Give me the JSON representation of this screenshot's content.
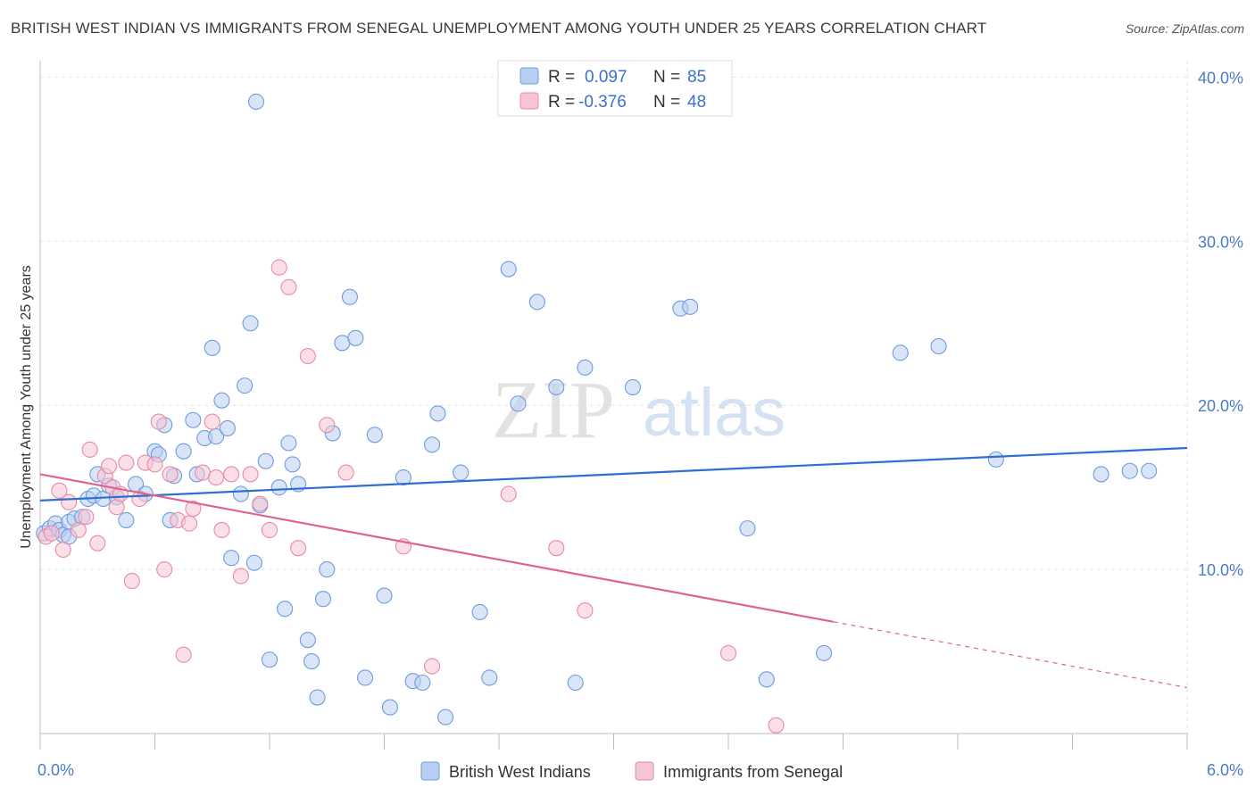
{
  "title": "BRITISH WEST INDIAN VS IMMIGRANTS FROM SENEGAL UNEMPLOYMENT AMONG YOUTH UNDER 25 YEARS CORRELATION CHART",
  "source": "Source: ZipAtlas.com",
  "watermark": {
    "zip": "ZIP",
    "atlas": "atlas"
  },
  "chart_data": {
    "type": "scatter",
    "ylabel": "Unemployment Among Youth under 25 years",
    "xlim": [
      0,
      6
    ],
    "ylim": [
      0,
      41
    ],
    "x_ticks": [
      "0.0%",
      "6.0%"
    ],
    "y_ticks": [
      {
        "value": 10,
        "label": "10.0%"
      },
      {
        "value": 20,
        "label": "20.0%"
      },
      {
        "value": 30,
        "label": "30.0%"
      },
      {
        "value": 40,
        "label": "40.0%"
      }
    ],
    "legend": [
      {
        "r_label": "R =",
        "r_value": "0.097",
        "n_label": "N =",
        "n_value": "85"
      },
      {
        "r_label": "R =",
        "r_value": "-0.376",
        "n_label": "N =",
        "n_value": "48"
      }
    ],
    "series": [
      {
        "name": "British West Indians",
        "color": "#6e9be0",
        "fill": "#b9cff1",
        "trend": {
          "x0": 0,
          "y0": 14.2,
          "x1": 6,
          "y1": 17.4,
          "dash_from": null
        },
        "points": [
          [
            0.02,
            12.2
          ],
          [
            0.05,
            12.5
          ],
          [
            0.08,
            12.8
          ],
          [
            0.1,
            12.4
          ],
          [
            0.12,
            12.1
          ],
          [
            0.15,
            12.9
          ],
          [
            0.18,
            13.1
          ],
          [
            0.22,
            13.2
          ],
          [
            0.25,
            14.3
          ],
          [
            0.28,
            14.5
          ],
          [
            0.3,
            15.8
          ],
          [
            0.33,
            14.3
          ],
          [
            0.36,
            15.1
          ],
          [
            0.4,
            14.4
          ],
          [
            0.45,
            13.0
          ],
          [
            0.5,
            15.2
          ],
          [
            0.55,
            14.6
          ],
          [
            0.6,
            17.2
          ],
          [
            0.62,
            17.0
          ],
          [
            0.65,
            18.8
          ],
          [
            0.68,
            13.0
          ],
          [
            0.7,
            15.7
          ],
          [
            0.75,
            17.2
          ],
          [
            0.8,
            19.1
          ],
          [
            0.82,
            15.8
          ],
          [
            0.86,
            18.0
          ],
          [
            0.9,
            23.5
          ],
          [
            0.92,
            18.1
          ],
          [
            0.95,
            20.3
          ],
          [
            0.98,
            18.6
          ],
          [
            1.0,
            10.7
          ],
          [
            1.05,
            14.6
          ],
          [
            1.07,
            21.2
          ],
          [
            1.1,
            25.0
          ],
          [
            1.12,
            10.4
          ],
          [
            1.15,
            13.9
          ],
          [
            1.18,
            16.6
          ],
          [
            1.2,
            4.5
          ],
          [
            1.25,
            15.0
          ],
          [
            1.28,
            7.6
          ],
          [
            1.3,
            17.7
          ],
          [
            1.32,
            16.4
          ],
          [
            1.35,
            15.2
          ],
          [
            1.4,
            5.7
          ],
          [
            1.42,
            4.4
          ],
          [
            1.45,
            2.2
          ],
          [
            1.48,
            8.2
          ],
          [
            1.5,
            10.0
          ],
          [
            1.53,
            18.3
          ],
          [
            1.58,
            23.8
          ],
          [
            1.62,
            26.6
          ],
          [
            1.65,
            24.1
          ],
          [
            1.7,
            3.4
          ],
          [
            1.75,
            18.2
          ],
          [
            1.8,
            8.4
          ],
          [
            1.83,
            1.6
          ],
          [
            1.9,
            15.6
          ],
          [
            1.95,
            3.2
          ],
          [
            2.0,
            3.1
          ],
          [
            2.05,
            17.6
          ],
          [
            2.08,
            19.5
          ],
          [
            2.12,
            1.0
          ],
          [
            2.2,
            15.9
          ],
          [
            2.3,
            7.4
          ],
          [
            2.35,
            3.4
          ],
          [
            2.45,
            28.3
          ],
          [
            2.5,
            20.1
          ],
          [
            2.6,
            26.3
          ],
          [
            2.7,
            21.1
          ],
          [
            2.8,
            3.1
          ],
          [
            2.85,
            22.3
          ],
          [
            3.1,
            21.1
          ],
          [
            3.35,
            25.9
          ],
          [
            3.4,
            26.0
          ],
          [
            3.7,
            12.5
          ],
          [
            3.8,
            3.3
          ],
          [
            4.1,
            4.9
          ],
          [
            4.5,
            23.2
          ],
          [
            4.7,
            23.6
          ],
          [
            5.0,
            16.7
          ],
          [
            5.55,
            15.8
          ],
          [
            5.7,
            16.0
          ],
          [
            5.8,
            16.0
          ],
          [
            0.15,
            12.0
          ],
          [
            1.13,
            38.5
          ]
        ]
      },
      {
        "name": "Immigrants from Senegal",
        "color": "#e98aa7",
        "fill": "#f6c5d4",
        "trend": {
          "x0": 0,
          "y0": 15.8,
          "x1": 6,
          "y1": 2.8,
          "dash_from": 4.15
        },
        "points": [
          [
            0.03,
            12.0
          ],
          [
            0.06,
            12.2
          ],
          [
            0.1,
            14.8
          ],
          [
            0.12,
            11.2
          ],
          [
            0.15,
            14.1
          ],
          [
            0.2,
            12.4
          ],
          [
            0.24,
            13.2
          ],
          [
            0.26,
            17.3
          ],
          [
            0.3,
            11.6
          ],
          [
            0.34,
            15.7
          ],
          [
            0.36,
            16.3
          ],
          [
            0.38,
            15.0
          ],
          [
            0.4,
            13.8
          ],
          [
            0.42,
            14.6
          ],
          [
            0.45,
            16.5
          ],
          [
            0.48,
            9.3
          ],
          [
            0.52,
            14.3
          ],
          [
            0.55,
            16.5
          ],
          [
            0.6,
            16.4
          ],
          [
            0.62,
            19.0
          ],
          [
            0.65,
            10.0
          ],
          [
            0.68,
            15.8
          ],
          [
            0.72,
            13.0
          ],
          [
            0.75,
            4.8
          ],
          [
            0.78,
            12.8
          ],
          [
            0.8,
            13.7
          ],
          [
            0.85,
            15.9
          ],
          [
            0.9,
            19.0
          ],
          [
            0.92,
            15.6
          ],
          [
            0.95,
            12.4
          ],
          [
            1.0,
            15.8
          ],
          [
            1.05,
            9.6
          ],
          [
            1.1,
            15.8
          ],
          [
            1.15,
            14.0
          ],
          [
            1.2,
            12.4
          ],
          [
            1.25,
            28.4
          ],
          [
            1.3,
            27.2
          ],
          [
            1.35,
            11.3
          ],
          [
            1.4,
            23.0
          ],
          [
            1.5,
            18.8
          ],
          [
            1.6,
            15.9
          ],
          [
            1.9,
            11.4
          ],
          [
            2.05,
            4.1
          ],
          [
            2.45,
            14.6
          ],
          [
            2.7,
            11.3
          ],
          [
            2.85,
            7.5
          ],
          [
            3.6,
            4.9
          ],
          [
            3.85,
            0.5
          ]
        ]
      }
    ]
  }
}
